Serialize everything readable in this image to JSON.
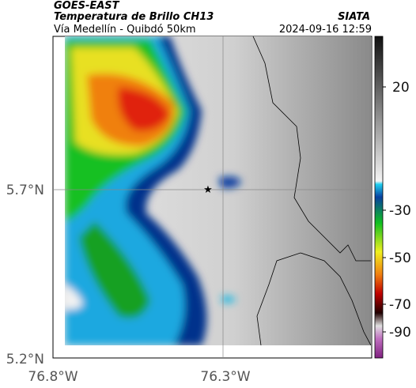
{
  "header": {
    "satellite": "GOES-EAST",
    "product": "Temperatura de Brillo CH13",
    "source": "SIATA",
    "region": "Vía Medellín - Quibdó 50km",
    "timestamp": "2024-09-16 12:59"
  },
  "axes": {
    "lat_labels": [
      "5.7°N",
      "5.2°N"
    ],
    "lon_labels": [
      "76.8°W",
      "76.3°W"
    ]
  },
  "colorbar": {
    "ticks": [
      "20",
      "-30",
      "-50",
      "-70",
      "-90"
    ]
  }
}
